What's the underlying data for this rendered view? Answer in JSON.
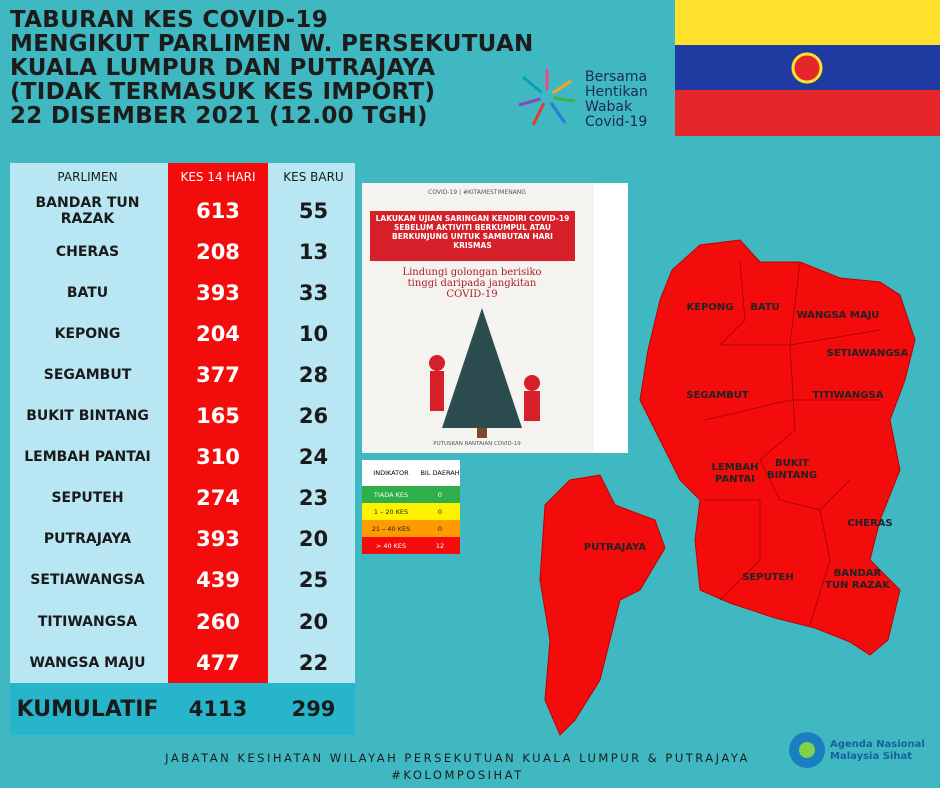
{
  "header": {
    "title_lines": [
      "TABURAN KES COVID-19",
      "MENGIKUT PARLIMEN W. PERSEKUTUAN",
      "KUALA LUMPUR DAN PUTRAJAYA",
      "(TIDAK TERMASUK KES IMPORT)",
      "22 DISEMBER 2021 (12.00 TGH)"
    ],
    "logo_text": [
      "Bersama",
      "Hentikan",
      "Wabak",
      "Covid-19"
    ]
  },
  "table": {
    "columns": [
      "PARLIMEN",
      "KES 14 HARI",
      "KES BARU"
    ],
    "rows": [
      [
        "BANDAR TUN RAZAK",
        "613",
        "55"
      ],
      [
        "CHERAS",
        "208",
        "13"
      ],
      [
        "BATU",
        "393",
        "33"
      ],
      [
        "KEPONG",
        "204",
        "10"
      ],
      [
        "SEGAMBUT",
        "377",
        "28"
      ],
      [
        "BUKIT BINTANG",
        "165",
        "26"
      ],
      [
        "LEMBAH PANTAI",
        "310",
        "24"
      ],
      [
        "SEPUTEH",
        "274",
        "23"
      ],
      [
        "PUTRAJAYA",
        "393",
        "20"
      ],
      [
        "SETIAWANGSA",
        "439",
        "25"
      ],
      [
        "TITIWANGSA",
        "260",
        "20"
      ],
      [
        "WANGSA MAJU",
        "477",
        "22"
      ]
    ],
    "total": [
      "KUMULATIF",
      "4113",
      "299"
    ]
  },
  "poster": {
    "tag": "COVID-19 | #KITAMESTIMENANG",
    "banner": "LAKUKAN UJIAN SARINGAN KENDIRI COVID-19 SEBELUM AKTIVITI BERKUMPUL ATAU BERKUNJUNG UNTUK SAMBUTAN HARI KRISMAS",
    "tagline": "Lindungi golongan berisiko tinggi daripada jangkitan COVID-19",
    "footer": "PUTUSKAN RANTAIAN COVID-19"
  },
  "legend": {
    "columns": [
      "INDIKATOR",
      "BIL DAERAH"
    ],
    "rows": [
      [
        "TIADA KES",
        "0"
      ],
      [
        "1 – 20 KES",
        "0"
      ],
      [
        "21 – 40 KES",
        "0"
      ],
      [
        "> 40 KES",
        "12"
      ]
    ]
  },
  "map": {
    "labels": [
      "KEPONG",
      "BATU",
      "WANGSA MAJU",
      "SETIAWANGSA",
      "SEGAMBUT",
      "TITIWANGSA",
      "LEMBAH PANTAI",
      "BUKIT BINTANG",
      "CHERAS",
      "PUTRAJAYA",
      "SEPUTEH",
      "BANDAR TUN RAZAK"
    ]
  },
  "footer": {
    "lines": [
      "JABATAN KESIHATAN WILAYAH PERSEKUTUAN KUALA LUMPUR & PUTRAJAYA",
      "#KOLOMPOSIHAT"
    ],
    "logo": "Agenda Nasional Malaysia Sihat"
  }
}
